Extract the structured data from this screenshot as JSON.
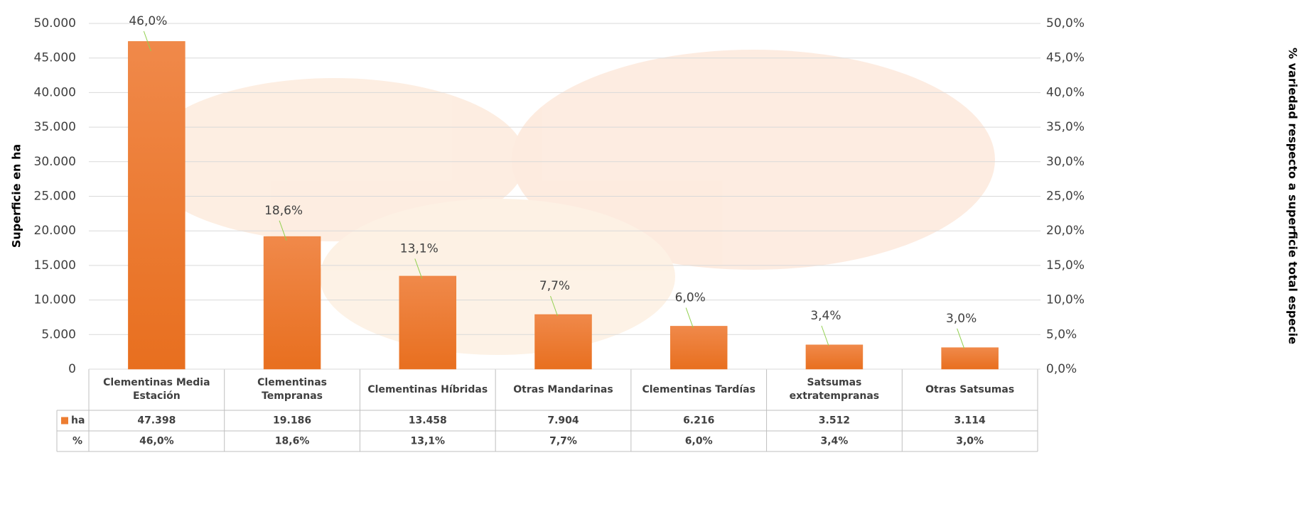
{
  "chart_data": {
    "type": "bar",
    "y_label": "Superficie en ha",
    "y2_label": "% variedad respecto a superficie total especie",
    "categories": [
      "Clementinas Media Estación",
      "Clementinas Tempranas",
      "Clementinas Híbridas",
      "Otras Mandarinas",
      "Clementinas Tardías",
      "Satsumas extratempranas",
      "Otras Satsumas"
    ],
    "series": [
      {
        "name": "ha",
        "color": "#ed7d31",
        "values": [
          47398,
          19186,
          13458,
          7904,
          6216,
          3512,
          3114
        ],
        "value_labels": [
          "47.398",
          "19.186",
          "13.458",
          "7.904",
          "6.216",
          "3.512",
          "3.114"
        ]
      },
      {
        "name": "%",
        "axis": "y2",
        "color": "#92d050",
        "values": [
          46.0,
          18.6,
          13.1,
          7.7,
          6.0,
          3.4,
          3.0
        ],
        "value_labels": [
          "46,0%",
          "18,6%",
          "13,1%",
          "7,7%",
          "6,0%",
          "3,4%",
          "3,0%"
        ]
      }
    ],
    "ylim": [
      0,
      50000
    ],
    "yticks": [
      {
        "value": 0,
        "label": "0"
      },
      {
        "value": 5000,
        "label": "5.000"
      },
      {
        "value": 10000,
        "label": "10.000"
      },
      {
        "value": 15000,
        "label": "15.000"
      },
      {
        "value": 20000,
        "label": "20.000"
      },
      {
        "value": 25000,
        "label": "25.000"
      },
      {
        "value": 30000,
        "label": "30.000"
      },
      {
        "value": 35000,
        "label": "35.000"
      },
      {
        "value": 40000,
        "label": "40.000"
      },
      {
        "value": 45000,
        "label": "45.000"
      },
      {
        "value": 50000,
        "label": "50.000"
      }
    ],
    "y2lim": [
      0,
      50
    ],
    "y2ticks": [
      {
        "value": 0,
        "label": "0,0%"
      },
      {
        "value": 5,
        "label": "5,0%"
      },
      {
        "value": 10,
        "label": "10,0%"
      },
      {
        "value": 15,
        "label": "15,0%"
      },
      {
        "value": 20,
        "label": "20,0%"
      },
      {
        "value": 25,
        "label": "25,0%"
      },
      {
        "value": 30,
        "label": "30,0%"
      },
      {
        "value": 35,
        "label": "35,0%"
      },
      {
        "value": 40,
        "label": "40,0%"
      },
      {
        "value": 45,
        "label": "45,0%"
      },
      {
        "value": 50,
        "label": "50,0%"
      }
    ],
    "grid": true
  }
}
